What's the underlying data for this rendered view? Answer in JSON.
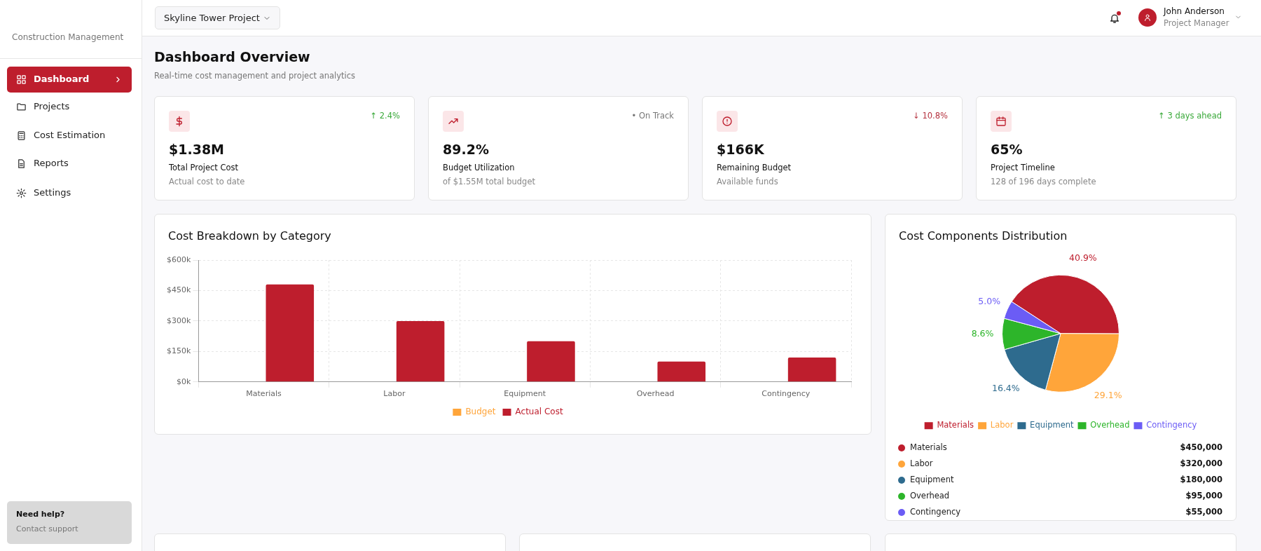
{
  "chart_data": [
    {
      "type": "other",
      "title": "Dashboard Overview",
      "subtitle": "Real-time cost management and project analytics",
      "annotations": [
        "Construction Management",
        "Dashboard",
        "Projects",
        "Cost Estimation",
        "Reports",
        "Settings",
        "Need help?",
        "Contact support",
        "Skyline Tower Project",
        "John Anderson",
        "Project Manager"
      ]
    },
    {
      "type": "other",
      "title": "Total Project Cost",
      "subtitle": "Actual cost to date",
      "annotations": [
        "$1.38M",
        "↑ 2.4%"
      ]
    },
    {
      "type": "other",
      "title": "Budget Utilization",
      "subtitle": "of $1.55M total budget",
      "annotations": [
        "89.2%",
        "• On Track"
      ]
    },
    {
      "type": "other",
      "title": "Remaining Budget",
      "subtitle": "Available funds",
      "annotations": [
        "$166K",
        "↓ 10.8%"
      ]
    },
    {
      "type": "other",
      "title": "Project Timeline",
      "subtitle": "128 of 196 days complete",
      "annotations": [
        "65%",
        "↑ 3 days ahead"
      ]
    },
    {
      "type": "bar",
      "title": "Cost Breakdown by Category",
      "categories": [
        "Materials",
        "Labor",
        "Equipment",
        "Overhead",
        "Contingency"
      ],
      "series": [
        {
          "name": "Budget",
          "color": "#ffa53a",
          "values": [
            null,
            null,
            null,
            null,
            null
          ]
        },
        {
          "name": "Actual Cost",
          "color": "#be1e2d",
          "values": [
            480,
            300,
            200,
            100,
            120
          ]
        }
      ],
      "ylim": [
        0,
        600
      ],
      "yticks": [
        {
          "value": 0,
          "label": "$0k"
        },
        {
          "value": 150,
          "label": "$150k"
        },
        {
          "value": 300,
          "label": "$300k"
        },
        {
          "value": 450,
          "label": "$450k"
        },
        {
          "value": 600,
          "label": "$600k"
        }
      ],
      "grid": true,
      "legend": "bottom"
    },
    {
      "type": "pie",
      "title": "Cost Components Distribution",
      "categories": [
        "Materials",
        "Labor",
        "Equipment",
        "Overhead",
        "Contingency"
      ],
      "values": [
        40.9,
        29.1,
        16.4,
        8.6,
        5.0
      ],
      "colors": [
        "#be1e2d",
        "#ffa53a",
        "#2e6b8e",
        "#2db52a",
        "#6b5cf5"
      ],
      "value_labels": [
        "40.9%",
        "29.1%",
        "16.4%",
        "8.6%",
        "5.0%"
      ],
      "legend": "bottom",
      "annotations": [
        "$450,000",
        "$320,000",
        "$180,000",
        "$95,000",
        "$55,000"
      ]
    }
  ]
}
